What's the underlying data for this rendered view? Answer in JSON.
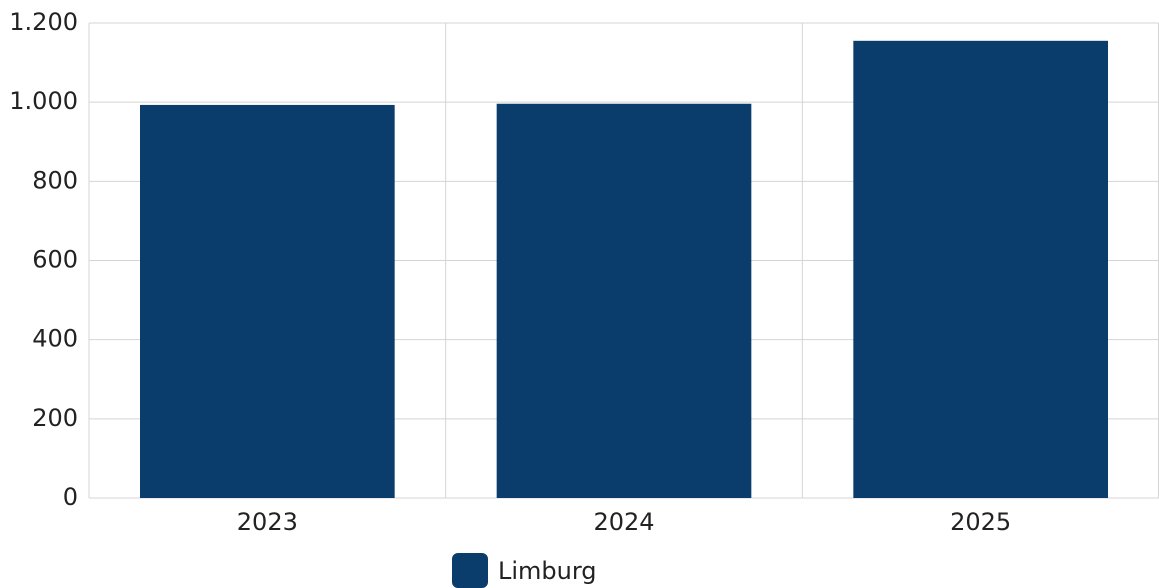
{
  "chart_data": {
    "type": "bar",
    "categories": [
      "2023",
      "2024",
      "2025"
    ],
    "series": [
      {
        "name": "Limburg",
        "color": "#0a3d6b",
        "values": [
          993,
          996,
          1155
        ]
      }
    ],
    "ylim": [
      0,
      1200
    ],
    "yticks": [
      0,
      200,
      400,
      600,
      800,
      {
        "value": 1000,
        "label": "1.000"
      },
      {
        "value": 1200,
        "label": "1.200"
      }
    ],
    "grid": true,
    "legend": "bottom"
  }
}
